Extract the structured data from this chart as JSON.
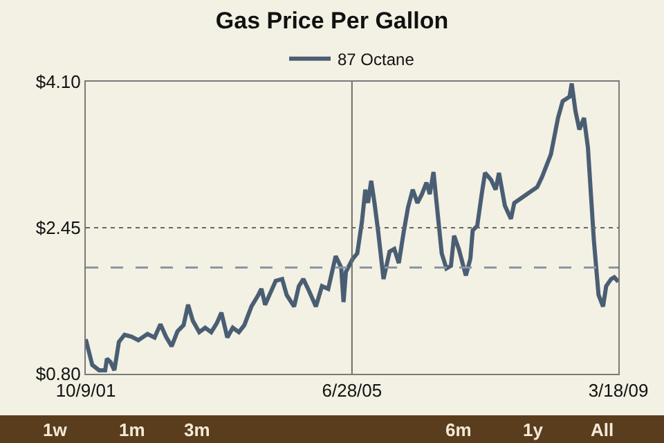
{
  "chart_data": {
    "type": "line",
    "title": "Gas Price Per Gallon",
    "x": [
      "2001-10-09",
      "2001-11-11",
      "2001-12-16",
      "2002-01-16",
      "2002-01-25",
      "2002-02-13",
      "2002-03-04",
      "2002-03-27",
      "2002-04-25",
      "2002-05-30",
      "2002-07-04",
      "2002-08-20",
      "2002-09-25",
      "2002-10-25",
      "2002-11-22",
      "2002-12-21",
      "2003-01-20",
      "2003-02-20",
      "2003-03-15",
      "2003-04-08",
      "2003-05-11",
      "2003-06-10",
      "2003-07-11",
      "2003-08-08",
      "2003-09-01",
      "2003-10-01",
      "2003-10-29",
      "2003-11-29",
      "2003-12-27",
      "2004-02-01",
      "2004-03-07",
      "2004-03-23",
      "2004-04-11",
      "2004-05-05",
      "2004-06-04",
      "2004-07-07",
      "2004-07-30",
      "2004-09-06",
      "2004-09-30",
      "2004-10-23",
      "2004-11-20",
      "2004-12-26",
      "2005-01-26",
      "2005-02-27",
      "2005-04-06",
      "2005-05-04",
      "2005-05-16",
      "2005-05-28",
      "2005-07-02",
      "2005-07-25",
      "2005-08-18",
      "2005-09-04",
      "2005-09-18",
      "2005-10-04",
      "2005-10-21",
      "2005-11-08",
      "2005-12-06",
      "2006-01-06",
      "2006-01-30",
      "2006-02-22",
      "2006-03-18",
      "2006-04-10",
      "2006-05-04",
      "2006-05-28",
      "2006-06-20",
      "2006-07-13",
      "2006-07-30",
      "2006-08-18",
      "2006-09-05",
      "2006-09-29",
      "2006-10-23",
      "2006-11-15",
      "2006-12-01",
      "2006-12-25",
      "2007-01-30",
      "2007-02-22",
      "2007-03-06",
      "2007-03-29",
      "2007-04-21",
      "2007-05-08",
      "2007-06-08",
      "2007-07-01",
      "2007-07-18",
      "2007-08-17",
      "2007-09-17",
      "2007-10-04",
      "2008-01-29",
      "2008-02-22",
      "2008-04-08",
      "2008-05-14",
      "2008-06-07",
      "2008-07-12",
      "2008-07-23",
      "2008-08-11",
      "2008-08-31",
      "2008-09-24",
      "2008-10-14",
      "2008-11-13",
      "2008-12-07",
      "2008-12-30",
      "2009-01-15",
      "2009-02-09",
      "2009-02-25",
      "2009-03-18"
    ],
    "series": [
      {
        "name": "87 Octane",
        "color": "#4a5e73",
        "values": [
          1.19,
          0.9,
          0.84,
          0.84,
          0.97,
          0.93,
          0.84,
          1.16,
          1.24,
          1.22,
          1.18,
          1.25,
          1.21,
          1.36,
          1.22,
          1.11,
          1.28,
          1.35,
          1.58,
          1.4,
          1.27,
          1.32,
          1.27,
          1.37,
          1.49,
          1.21,
          1.32,
          1.27,
          1.35,
          1.56,
          1.69,
          1.76,
          1.58,
          1.7,
          1.85,
          1.87,
          1.69,
          1.56,
          1.79,
          1.87,
          1.74,
          1.56,
          1.79,
          1.76,
          2.13,
          2.0,
          1.61,
          1.95,
          2.1,
          2.16,
          2.52,
          2.88,
          2.73,
          2.98,
          2.73,
          2.42,
          1.87,
          2.18,
          2.21,
          2.05,
          2.39,
          2.68,
          2.88,
          2.73,
          2.83,
          2.96,
          2.83,
          3.08,
          2.68,
          2.16,
          1.99,
          2.02,
          2.36,
          2.21,
          1.91,
          2.1,
          2.42,
          2.47,
          2.83,
          3.07,
          2.99,
          2.88,
          3.07,
          2.7,
          2.55,
          2.73,
          2.91,
          3.02,
          3.28,
          3.69,
          3.88,
          3.93,
          4.08,
          3.77,
          3.56,
          3.69,
          3.35,
          2.31,
          1.69,
          1.56,
          1.79,
          1.87,
          1.89,
          1.84
        ]
      }
    ],
    "xlim": [
      "2001-10-09",
      "2009-03-18"
    ],
    "xticks": [
      {
        "value": "2001-10-09",
        "label": "10/9/01"
      },
      {
        "value": "2005-06-28",
        "label": "6/28/05"
      },
      {
        "value": "2009-03-18",
        "label": "3/18/09"
      }
    ],
    "ylim": [
      0.8,
      4.1
    ],
    "yticks": [
      {
        "value": 0.8,
        "label": "$0.80"
      },
      {
        "value": 2.45,
        "label": "$2.45"
      },
      {
        "value": 4.1,
        "label": "$4.10"
      }
    ],
    "grid": false,
    "ref_lines": [
      {
        "axis": "y",
        "value": 2.0,
        "label": null,
        "color": "#8a96a3",
        "line_style": "dashed"
      },
      {
        "axis": "y",
        "value": 2.45,
        "label": null,
        "color": "#666666",
        "line_style": "dotted"
      },
      {
        "axis": "x",
        "value": "2005-06-28",
        "label": null,
        "color": "#6e6e6e",
        "line_style": "solid"
      }
    ],
    "legend": "top",
    "marker": "none",
    "line_style": "solid",
    "annotations": [
      "1w",
      "1m",
      "3m",
      "6m",
      "1y",
      "All"
    ]
  }
}
